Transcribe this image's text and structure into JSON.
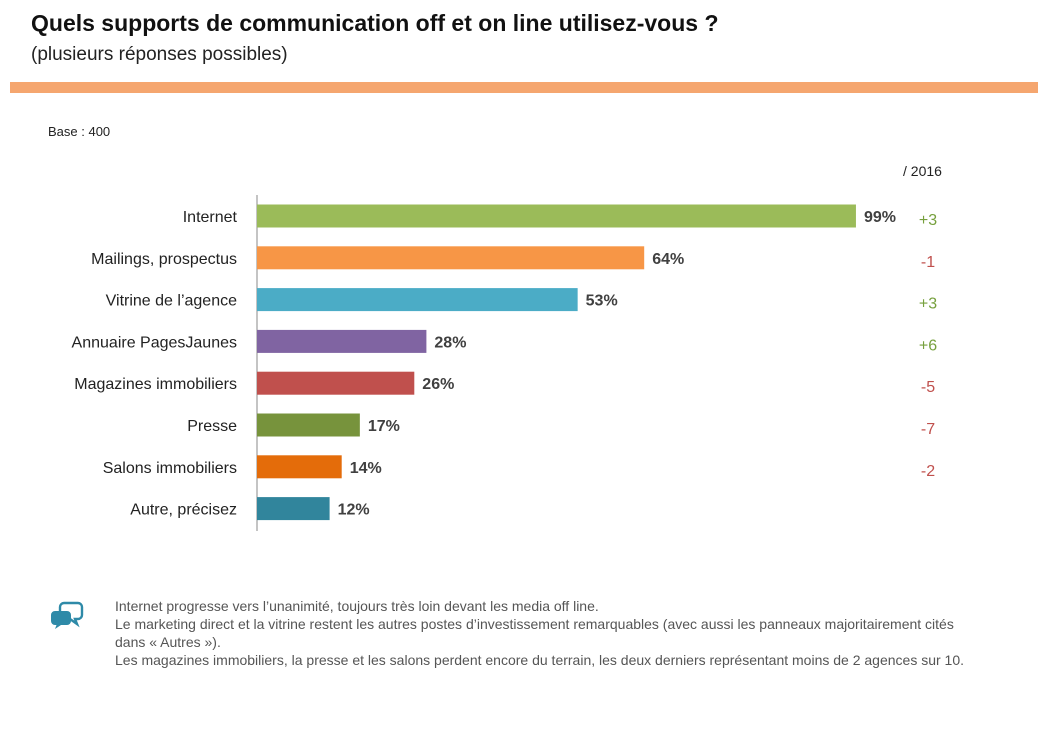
{
  "header": {
    "title": "Quels supports de communication  off et on line utilisez-vous  ?",
    "subtitle": "(plusieurs réponses possibles)"
  },
  "base_label": "Base : 400",
  "compare_label": "/ 2016",
  "colors": {
    "rule": "#f5a66f",
    "positive": "#76a03d",
    "negative": "#c0504d",
    "icon": "#2e8aa8"
  },
  "chart_data": {
    "type": "bar",
    "orientation": "horizontal",
    "title": "",
    "xlabel": "",
    "ylabel": "",
    "xlim": [
      0,
      100
    ],
    "categories": [
      "Internet",
      "Mailings, prospectus",
      "Vitrine de l’agence",
      "Annuaire PagesJaunes",
      "Magazines immobiliers",
      "Presse",
      "Salons immobiliers",
      "Autre, précisez"
    ],
    "values": [
      99,
      64,
      53,
      28,
      26,
      17,
      14,
      12
    ],
    "value_labels": [
      "99%",
      "64%",
      "53%",
      "28%",
      "26%",
      "17%",
      "14%",
      "12%"
    ],
    "bar_colors": [
      "#9bbb59",
      "#f79646",
      "#4bacc6",
      "#8064a2",
      "#c0504d",
      "#77933c",
      "#e46c0a",
      "#31859c"
    ],
    "evolution_vs_2016": [
      "+3",
      "-1",
      "+3",
      "+6",
      "-5",
      "-7",
      "-2"
    ],
    "grid": false,
    "legend": "none"
  },
  "comment": {
    "icon": "speech-bubbles-icon",
    "lines": [
      "Internet progresse vers l’unanimité, toujours très loin devant les media off line.",
      "Le marketing direct et la vitrine restent les autres postes d’investissement remarquables (avec aussi  les panneaux majoritairement cités dans « Autres »).",
      "Les magazines immobiliers, la presse et les salons perdent encore du terrain, les deux derniers représentant moins de 2 agences sur 10."
    ]
  }
}
